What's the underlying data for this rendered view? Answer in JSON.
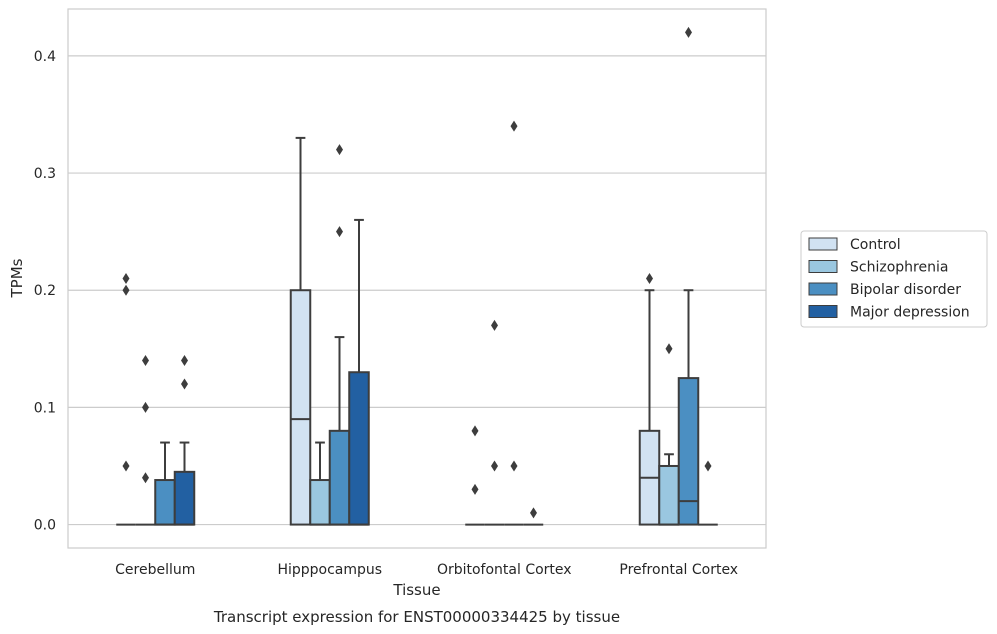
{
  "chart_data": {
    "type": "boxplot",
    "xlabel": "Tissue",
    "ylabel": "TPMs",
    "caption": "Transcript expression for ENST00000334425 by tissue",
    "ylim": [
      -0.02,
      0.44
    ],
    "yticks": [
      0.0,
      0.1,
      0.2,
      0.3,
      0.4
    ],
    "ytick_labels": [
      "0.0",
      "0.1",
      "0.2",
      "0.3",
      "0.4"
    ],
    "grid": "horizontal",
    "legend_position": "right",
    "categories": [
      "Cerebellum",
      "Hipppocampus",
      "Orbitofontal Cortex",
      "Prefrontal Cortex"
    ],
    "series": [
      {
        "name": "Control",
        "color": "#d1e2f2"
      },
      {
        "name": "Schizophrenia",
        "color": "#9ac7e0"
      },
      {
        "name": "Bipolar disorder",
        "color": "#4b8fc2"
      },
      {
        "name": "Major depression",
        "color": "#2260a2"
      }
    ],
    "boxes": [
      [
        {
          "q1": 0.0,
          "median": 0.0,
          "q3": 0.0,
          "wlo": 0.0,
          "whi": 0.0,
          "fliers": [
            0.21,
            0.2,
            0.05
          ]
        },
        {
          "q1": 0.0,
          "median": 0.0,
          "q3": 0.0,
          "wlo": 0.0,
          "whi": 0.0,
          "fliers": [
            0.14,
            0.1,
            0.04
          ]
        },
        {
          "q1": 0.0,
          "median": 0.0,
          "q3": 0.038,
          "wlo": 0.0,
          "whi": 0.07,
          "fliers": []
        },
        {
          "q1": 0.0,
          "median": 0.0,
          "q3": 0.045,
          "wlo": 0.0,
          "whi": 0.07,
          "fliers": [
            0.14,
            0.12
          ]
        }
      ],
      [
        {
          "q1": 0.0,
          "median": 0.09,
          "q3": 0.2,
          "wlo": 0.0,
          "whi": 0.33,
          "fliers": []
        },
        {
          "q1": 0.0,
          "median": 0.0,
          "q3": 0.038,
          "wlo": 0.0,
          "whi": 0.07,
          "fliers": []
        },
        {
          "q1": 0.0,
          "median": 0.0,
          "q3": 0.08,
          "wlo": 0.0,
          "whi": 0.16,
          "fliers": [
            0.32,
            0.25
          ]
        },
        {
          "q1": 0.0,
          "median": 0.0,
          "q3": 0.13,
          "wlo": 0.0,
          "whi": 0.26,
          "fliers": []
        }
      ],
      [
        {
          "q1": 0.0,
          "median": 0.0,
          "q3": 0.0,
          "wlo": 0.0,
          "whi": 0.0,
          "fliers": [
            0.08,
            0.03
          ]
        },
        {
          "q1": 0.0,
          "median": 0.0,
          "q3": 0.0,
          "wlo": 0.0,
          "whi": 0.0,
          "fliers": [
            0.17,
            0.05
          ]
        },
        {
          "q1": 0.0,
          "median": 0.0,
          "q3": 0.0,
          "wlo": 0.0,
          "whi": 0.0,
          "fliers": [
            0.34,
            0.05
          ]
        },
        {
          "q1": 0.0,
          "median": 0.0,
          "q3": 0.0,
          "wlo": 0.0,
          "whi": 0.0,
          "fliers": [
            0.01
          ]
        }
      ],
      [
        {
          "q1": 0.0,
          "median": 0.04,
          "q3": 0.08,
          "wlo": 0.0,
          "whi": 0.2,
          "fliers": [
            0.21
          ]
        },
        {
          "q1": 0.0,
          "median": 0.0,
          "q3": 0.05,
          "wlo": 0.0,
          "whi": 0.06,
          "fliers": [
            0.15
          ]
        },
        {
          "q1": 0.0,
          "median": 0.02,
          "q3": 0.125,
          "wlo": 0.0,
          "whi": 0.2,
          "fliers": [
            0.42
          ]
        },
        {
          "q1": 0.0,
          "median": 0.0,
          "q3": 0.0,
          "wlo": 0.0,
          "whi": 0.0,
          "fliers": [
            0.05
          ]
        }
      ]
    ]
  }
}
